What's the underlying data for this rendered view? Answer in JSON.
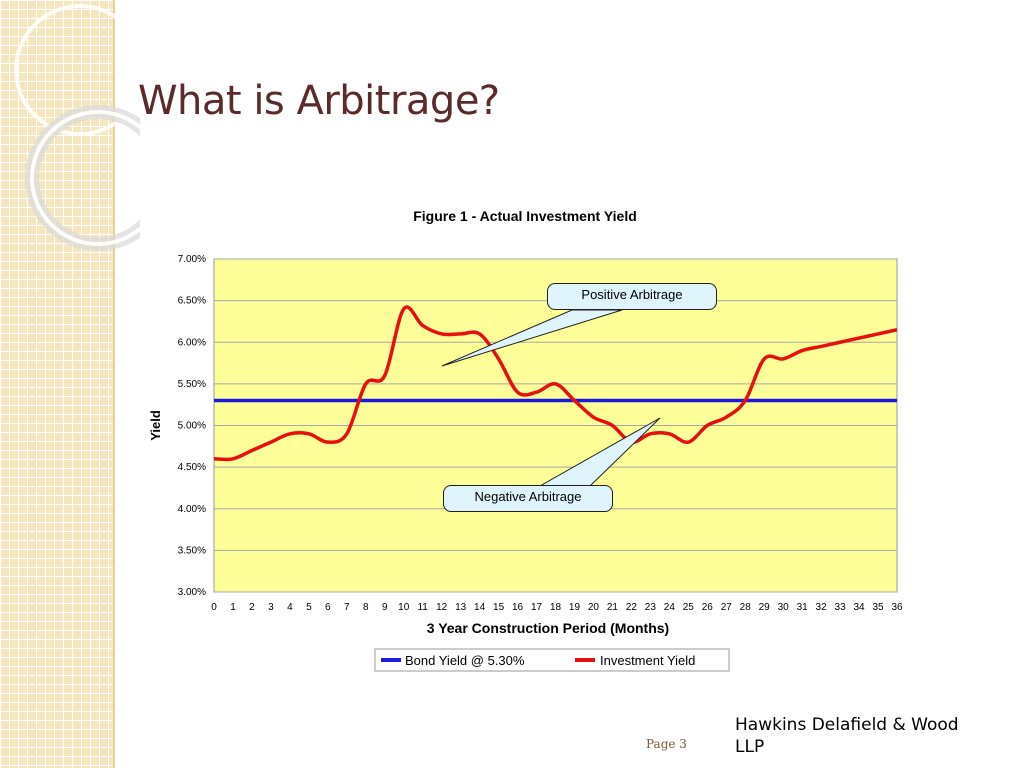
{
  "slide": {
    "title": "What is Arbitrage?",
    "page_label": "Page 3",
    "firm_line1": "Hawkins Delafield & Wood",
    "firm_line2": "LLP"
  },
  "callouts": {
    "positive": "Positive Arbitrage",
    "negative": "Negative Arbitrage"
  },
  "colors": {
    "bond_line": "#1a1adc",
    "investment_line": "#e80f0f",
    "plot_bg": "#ffff99",
    "title_color": "#5b2a2a"
  },
  "chart_data": {
    "type": "line",
    "title": "Figure 1 - Actual Investment Yield",
    "xlabel": "3 Year Construction Period (Months)",
    "ylabel": "Yield",
    "x": [
      0,
      1,
      2,
      3,
      4,
      5,
      6,
      7,
      8,
      9,
      10,
      11,
      12,
      13,
      14,
      15,
      16,
      17,
      18,
      19,
      20,
      21,
      22,
      23,
      24,
      25,
      26,
      27,
      28,
      29,
      30,
      31,
      32,
      33,
      34,
      35,
      36
    ],
    "ylim": [
      3.0,
      7.0
    ],
    "yticks": [
      "3.00%",
      "3.50%",
      "4.00%",
      "4.50%",
      "5.00%",
      "5.50%",
      "6.00%",
      "6.50%",
      "7.00%"
    ],
    "grid": true,
    "legend": "bottom",
    "series": [
      {
        "name": "Bond Yield @ 5.30%",
        "values": [
          5.3,
          5.3,
          5.3,
          5.3,
          5.3,
          5.3,
          5.3,
          5.3,
          5.3,
          5.3,
          5.3,
          5.3,
          5.3,
          5.3,
          5.3,
          5.3,
          5.3,
          5.3,
          5.3,
          5.3,
          5.3,
          5.3,
          5.3,
          5.3,
          5.3,
          5.3,
          5.3,
          5.3,
          5.3,
          5.3,
          5.3,
          5.3,
          5.3,
          5.3,
          5.3,
          5.3,
          5.3
        ]
      },
      {
        "name": "Investment Yield",
        "values": [
          4.6,
          4.6,
          4.7,
          4.8,
          4.9,
          4.9,
          4.8,
          4.9,
          5.5,
          5.6,
          6.4,
          6.2,
          6.1,
          6.1,
          6.1,
          5.8,
          5.4,
          5.4,
          5.5,
          5.3,
          5.1,
          5.0,
          4.8,
          4.9,
          4.9,
          4.8,
          5.0,
          5.1,
          5.3,
          5.8,
          5.8,
          5.9,
          5.95,
          6.0,
          6.05,
          6.1,
          6.15
        ]
      }
    ]
  }
}
